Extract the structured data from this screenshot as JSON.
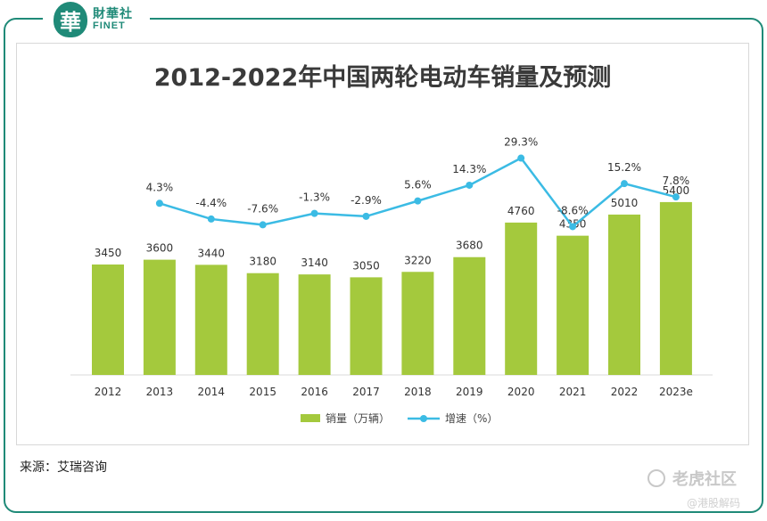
{
  "brand": {
    "logo_char": "華",
    "name_cn": "財華社",
    "name_en": "FINET"
  },
  "watermarks": {
    "primary": "老虎社区",
    "secondary": "@港股解码"
  },
  "source": "来源：艾瑞咨询",
  "colors": {
    "bar": "#a4c93d",
    "line": "#3bbbe4",
    "frame": "#1f8a78",
    "title": "#3a3a3a"
  },
  "chart_data": {
    "type": "bar",
    "title": "2012-2022年中国两轮电动车销量及预测",
    "categories": [
      "2012",
      "2013",
      "2014",
      "2015",
      "2016",
      "2017",
      "2018",
      "2019",
      "2020",
      "2021",
      "2022",
      "2023e"
    ],
    "series": [
      {
        "name": "销量（万辆）",
        "type": "bar",
        "values": [
          3450,
          3600,
          3440,
          3180,
          3140,
          3050,
          3220,
          3680,
          4760,
          4350,
          5010,
          5400
        ]
      },
      {
        "name": "增速（%）",
        "type": "line",
        "values": [
          null,
          4.3,
          -4.4,
          -7.6,
          -1.3,
          -2.9,
          5.6,
          14.3,
          29.3,
          -8.6,
          15.2,
          7.8
        ]
      }
    ],
    "bar_labels": [
      "3450",
      "3600",
      "3440",
      "3180",
      "3140",
      "3050",
      "3220",
      "3680",
      "4760",
      "4350",
      "5010",
      "5400"
    ],
    "line_labels": [
      "",
      "4.3%",
      "-4.4%",
      "-7.6%",
      "-1.3%",
      "-2.9%",
      "5.6%",
      "14.3%",
      "29.3%",
      "-8.6%",
      "15.2%",
      "7.8%"
    ],
    "ylim_bar": [
      0,
      7000
    ],
    "ylim_line": [
      -60,
      40
    ],
    "legend_position": "bottom",
    "grid": false
  }
}
